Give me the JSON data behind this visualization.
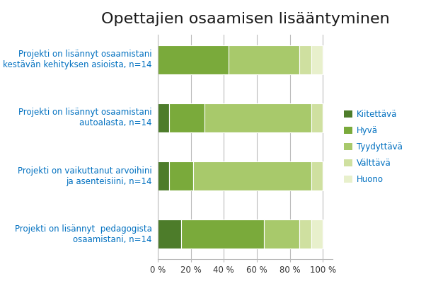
{
  "title": "Opettajien osaamisen lisääntyminen",
  "categories": [
    "Projekti on lisännyt  pedagogista\nosaamistani, n=14",
    "Projekti on vaikuttanut arvoihini\nja asenteisiini, n=14",
    "Projekti on lisännyt osaamistani\nautoalasta, n=14",
    "Projekti on lisännyt osaamistani\nkestävän kehityksen asioista, n=14"
  ],
  "legend_labels": [
    "Kiitettävä",
    "Hyvä",
    "Tyydyttävä",
    "Välttävä",
    "Huono"
  ],
  "colors": [
    "#4d7c2a",
    "#7aaa3b",
    "#a8c96b",
    "#cfe0a0",
    "#e8f0cc"
  ],
  "data": [
    [
      14.3,
      50.0,
      21.4,
      7.1,
      7.1
    ],
    [
      7.1,
      14.3,
      71.4,
      7.1,
      0.0
    ],
    [
      7.1,
      21.4,
      64.3,
      7.1,
      0.0
    ],
    [
      0.0,
      42.9,
      42.9,
      7.1,
      7.1
    ]
  ],
  "xlim": [
    0,
    106
  ],
  "xticks": [
    0,
    20,
    40,
    60,
    80,
    100
  ],
  "xtick_labels": [
    "0 %",
    "20 %",
    "40 %",
    "60 %",
    "80 %",
    "100 %"
  ],
  "title_fontsize": 16,
  "label_fontsize": 8.5,
  "tick_fontsize": 8.5,
  "legend_fontsize": 8.5,
  "bar_height": 0.5,
  "background_color": "#ffffff",
  "title_color": "#1a1a1a",
  "label_color": "#0070c0",
  "legend_label_color": "#0070c0",
  "grid_color": "#bbbbbb"
}
